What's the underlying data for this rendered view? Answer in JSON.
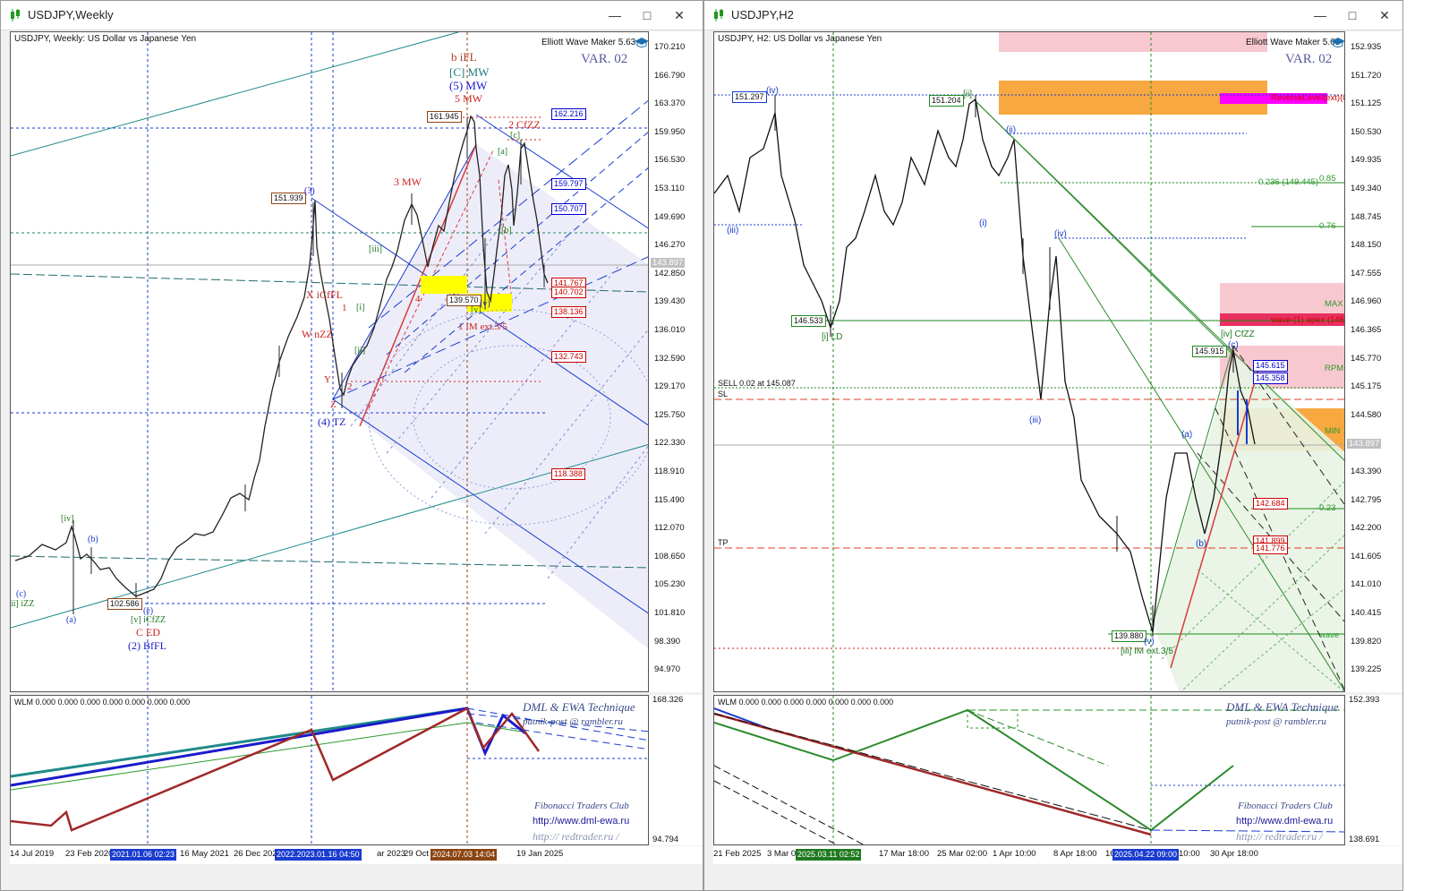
{
  "left": {
    "title": "USDJPY,Weekly",
    "chart_title": "USDJPY, Weekly:  US Dollar vs Japanese Yen",
    "ewm": "Elliott Wave Maker 5.63",
    "var": "VAR. 02",
    "price_ticks": [
      "170.210",
      "166.790",
      "163.370",
      "159.950",
      "156.530",
      "153.110",
      "149.690",
      "146.270",
      "142.850",
      "139.430",
      "136.010",
      "132.590",
      "129.170",
      "125.750",
      "122.330",
      "118.910",
      "115.490",
      "112.070",
      "108.650",
      "105.230",
      "101.810",
      "98.390",
      "94.970"
    ],
    "current_price": "143.897",
    "price_tags": [
      {
        "text": "162.216",
        "color": "#0000cc"
      },
      {
        "text": "159.797",
        "color": "#0000cc"
      },
      {
        "text": "150.707",
        "color": "#0000cc"
      },
      {
        "text": "141.767",
        "color": "#cc0000"
      },
      {
        "text": "140.702",
        "color": "#cc0000"
      },
      {
        "text": "138.136",
        "color": "#cc0000"
      },
      {
        "text": "132.743",
        "color": "#cc0000"
      },
      {
        "text": "118.388",
        "color": "#cc0000"
      }
    ],
    "point_tags": [
      "161.945",
      "151.939",
      "139.570",
      "102.586"
    ],
    "wave_labels": [
      "b iFL",
      "[C] MW",
      "(5) MW",
      "5 MW",
      "2 CfZZ",
      "3 MW",
      "X iCfFL",
      "W nZZ",
      "Y",
      "Z",
      "(4) TZ",
      "1 IM ext.3/5",
      "[iv]",
      "[v] iCfZZ",
      "C ED",
      "(2) BfFL",
      "ii] iZZ",
      "(a)",
      "(b)",
      "(c)",
      "(e)",
      "4",
      "1",
      "2",
      "[c]",
      "[a]",
      "[b]",
      "[v]",
      "[iii]",
      "[ii]",
      "[i]",
      "(3)",
      "(v)"
    ],
    "date_ticks": [
      "14 Jul 2019",
      "23 Feb 2020",
      "16 May 2021",
      "26 Dec 2021",
      "ar 2023",
      "29 Oct",
      "19 Jan 2025"
    ],
    "date_flags": [
      {
        "text": "2021.01.06 02:23",
        "color": "#1a3ccf"
      },
      {
        "text": "2022.2023.01.16 04:50",
        "color": "#1a3ccf"
      },
      {
        "text": "2024.07.03 14:04",
        "color": "#8b4513"
      }
    ],
    "ind_label": "WLM 0.000 0.000 0.000 0.000 0.000 0.000 0.000",
    "ind_ticks": [
      "168.326",
      "94.794"
    ],
    "watermark1": "DML & EWA Technique",
    "watermark2": "putnik-post @ rambler.ru",
    "footer1": "Fibonacci     Traders     Club",
    "footer2": "http://www.dml-ewa.ru",
    "footer3": "http:// redtrader.ru /"
  },
  "right": {
    "title": "USDJPY,H2",
    "chart_title": "USDJPY, H2:  US Dollar vs Japanese Yen",
    "ewm": "Elliott Wave Maker 5.63",
    "var": "VAR. 02",
    "price_ticks": [
      "152.935",
      "151.720",
      "151.125",
      "150.530",
      "149.935",
      "149.340",
      "148.745",
      "148.150",
      "147.555",
      "146.960",
      "146.365",
      "145.770",
      "145.175",
      "144.580",
      "143.985",
      "143.390",
      "142.795",
      "142.200",
      "141.605",
      "141.010",
      "140.415",
      "139.820",
      "139.225"
    ],
    "current_price": "143.897",
    "price_tags": [
      {
        "text": "145.615",
        "color": "#0000cc"
      },
      {
        "text": "145.358",
        "color": "#0000cc"
      },
      {
        "text": "142.684",
        "color": "#cc0000"
      },
      {
        "text": "141.899",
        "color": "#cc0000"
      },
      {
        "text": "141.776",
        "color": "#cc0000"
      }
    ],
    "point_tags": [
      "151.297",
      "151.204",
      "146.533",
      "145.915",
      "139.880"
    ],
    "fib_labels": [
      "0.85",
      "0.236 (149.445)",
      "0.76",
      "MAX",
      "RPM",
      "MIN",
      "0.23",
      "wave"
    ],
    "zone_labels": [
      "ReverseLevel(ext)(0.2",
      "wave-(1) apex (146.4"
    ],
    "sell_label": "SELL 0.02 at 145.087",
    "sl_label": "SL",
    "tp_label": "TP",
    "wave_labels": [
      "(iv)",
      "[ii]",
      "(ii)",
      "(iii)",
      "(i)",
      "(iv)",
      "(iii)",
      "[iv] CfZZ",
      "(c)",
      "(a)",
      "(b)",
      "[i] LD",
      "(v)",
      "[iii] IM ext.3/5"
    ],
    "date_ticks": [
      "21 Feb 2025",
      "3 Mar 0",
      "17 Mar 18:00",
      "25 Mar 02:00",
      "1 Apr 10:00",
      "8 Apr 18:00",
      "16",
      "10:00",
      "30 Apr 18:00"
    ],
    "date_flags": [
      {
        "text": "2025.03.11 02:52",
        "color": "#1f7a1f"
      },
      {
        "text": "2025.04.22 09:00",
        "color": "#1a3ccf"
      }
    ],
    "ind_label": "WLM 0.000 0.000 0.000 0.000 0.000 0.000 0.000",
    "ind_ticks": [
      "152.393",
      "138.691"
    ],
    "watermark1": "DML & EWA Technique",
    "watermark2": "putnik-post @ rambler.ru",
    "footer1": "Fibonacci     Traders     Club",
    "footer2": "http://www.dml-ewa.ru",
    "footer3": "http:// redtrader.ru /"
  }
}
